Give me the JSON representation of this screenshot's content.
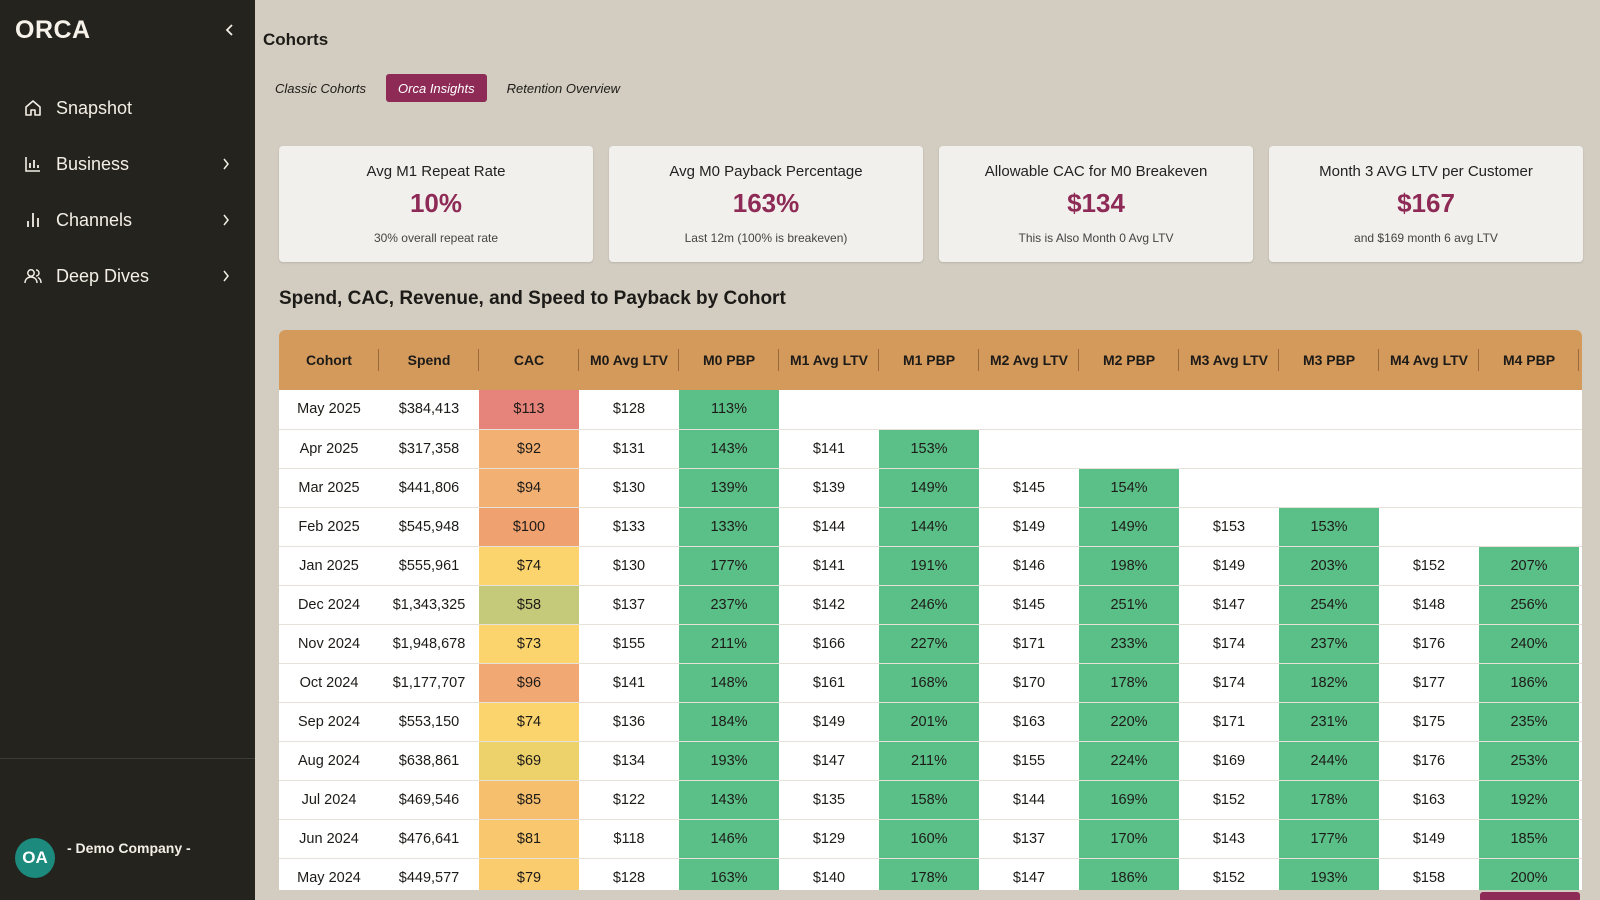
{
  "sidebar": {
    "logo": "ORCA",
    "items": [
      {
        "label": "Snapshot",
        "icon": "home-icon",
        "has_chevron": false
      },
      {
        "label": "Business",
        "icon": "bar-chart-icon",
        "has_chevron": true
      },
      {
        "label": "Channels",
        "icon": "bars-icon",
        "has_chevron": true
      },
      {
        "label": "Deep Dives",
        "icon": "users-icon",
        "has_chevron": true
      }
    ],
    "user": {
      "initials": "OA",
      "company": "- Demo Company -"
    }
  },
  "header": {
    "title": "Cohorts"
  },
  "tabs": [
    {
      "label": "Classic Cohorts",
      "active": false
    },
    {
      "label": "Orca Insights",
      "active": true
    },
    {
      "label": "Retention Overview",
      "active": false
    }
  ],
  "kpis": [
    {
      "label": "Avg M1 Repeat Rate",
      "value": "10%",
      "sub": "30% overall repeat rate"
    },
    {
      "label": "Avg M0 Payback Percentage",
      "value": "163%",
      "sub": "Last 12m (100% is breakeven)"
    },
    {
      "label": "Allowable CAC for M0 Breakeven",
      "value": "$134",
      "sub": "This is Also Month 0 Avg LTV"
    },
    {
      "label": "Month 3 AVG LTV per Customer",
      "value": "$167",
      "sub": "and $169 month 6 avg LTV"
    }
  ],
  "section_title": "Spend, CAC, Revenue, and Speed to Payback by Cohort",
  "colors": {
    "accent": "#8e2a56",
    "header": "#d49a5c",
    "payback_good": "#5bbf88",
    "sidebar": "#25231e"
  },
  "table": {
    "columns": [
      "Cohort",
      "Spend",
      "CAC",
      "M0 Avg LTV",
      "M0 PBP",
      "M1 Avg LTV",
      "M1 PBP",
      "M2 Avg LTV",
      "M2 PBP",
      "M3 Avg LTV",
      "M3 PBP",
      "M4 Avg LTV",
      "M4 PBP"
    ],
    "rows": [
      {
        "cells": [
          "May 2025",
          "$384,413",
          "$113",
          "$128",
          "113%",
          "",
          "",
          "",
          "",
          "",
          "",
          "",
          ""
        ],
        "cac_color": "#e6837a"
      },
      {
        "cells": [
          "Apr 2025",
          "$317,358",
          "$92",
          "$131",
          "143%",
          "$141",
          "153%",
          "",
          "",
          "",
          "",
          "",
          ""
        ],
        "cac_color": "#f2b173"
      },
      {
        "cells": [
          "Mar 2025",
          "$441,806",
          "$94",
          "$130",
          "139%",
          "$139",
          "149%",
          "$145",
          "154%",
          "",
          "",
          "",
          ""
        ],
        "cac_color": "#f2b173"
      },
      {
        "cells": [
          "Feb 2025",
          "$545,948",
          "$100",
          "$133",
          "133%",
          "$144",
          "144%",
          "$149",
          "149%",
          "$153",
          "153%",
          "",
          ""
        ],
        "cac_color": "#f0a170"
      },
      {
        "cells": [
          "Jan 2025",
          "$555,961",
          "$74",
          "$130",
          "177%",
          "$141",
          "191%",
          "$146",
          "198%",
          "$149",
          "203%",
          "$152",
          "207%"
        ],
        "cac_color": "#fcd46d"
      },
      {
        "cells": [
          "Dec 2024",
          "$1,343,325",
          "$58",
          "$137",
          "237%",
          "$142",
          "246%",
          "$145",
          "251%",
          "$147",
          "254%",
          "$148",
          "256%"
        ],
        "cac_color": "#c5c97a"
      },
      {
        "cells": [
          "Nov 2024",
          "$1,948,678",
          "$73",
          "$155",
          "211%",
          "$166",
          "227%",
          "$171",
          "233%",
          "$174",
          "237%",
          "$176",
          "240%"
        ],
        "cac_color": "#fcd46d"
      },
      {
        "cells": [
          "Oct 2024",
          "$1,177,707",
          "$96",
          "$141",
          "148%",
          "$161",
          "168%",
          "$170",
          "178%",
          "$174",
          "182%",
          "$177",
          "186%"
        ],
        "cac_color": "#f2a872"
      },
      {
        "cells": [
          "Sep 2024",
          "$553,150",
          "$74",
          "$136",
          "184%",
          "$149",
          "201%",
          "$163",
          "220%",
          "$171",
          "231%",
          "$175",
          "235%"
        ],
        "cac_color": "#fcd46d"
      },
      {
        "cells": [
          "Aug 2024",
          "$638,861",
          "$69",
          "$134",
          "193%",
          "$147",
          "211%",
          "$155",
          "224%",
          "$169",
          "244%",
          "$176",
          "253%"
        ],
        "cac_color": "#edd26c"
      },
      {
        "cells": [
          "Jul 2024",
          "$469,546",
          "$85",
          "$122",
          "143%",
          "$135",
          "158%",
          "$144",
          "169%",
          "$152",
          "178%",
          "$163",
          "192%"
        ],
        "cac_color": "#f6bf6e"
      },
      {
        "cells": [
          "Jun 2024",
          "$476,641",
          "$81",
          "$118",
          "146%",
          "$129",
          "160%",
          "$137",
          "170%",
          "$143",
          "177%",
          "$149",
          "185%"
        ],
        "cac_color": "#f9c86e"
      },
      {
        "cells": [
          "May 2024",
          "$449,577",
          "$79",
          "$128",
          "163%",
          "$140",
          "178%",
          "$147",
          "186%",
          "$152",
          "193%",
          "$158",
          "200%"
        ],
        "cac_color": "#fbcc6e"
      }
    ]
  }
}
